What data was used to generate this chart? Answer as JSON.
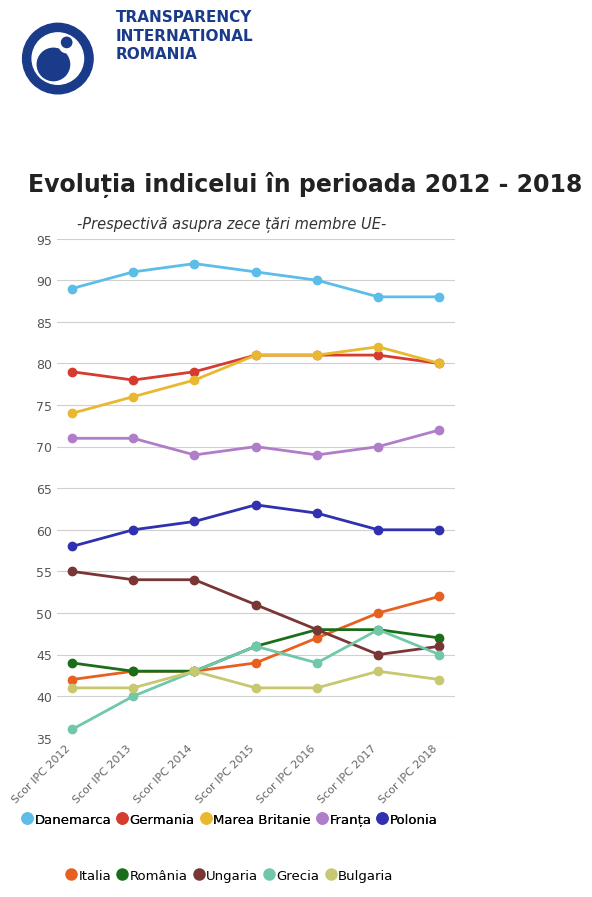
{
  "title": "Evoluția indicelui în perioada 2012 - 2018",
  "subtitle": "-Prespectivă asupra zece țări membre UE-",
  "x_labels": [
    "Scor IPC 2012",
    "Scor IPC 2013",
    "Scor IPC 2014",
    "Scor IPC 2015",
    "Scor IPC 2016",
    "Scor IPC 2017",
    "Scor IPC 2018"
  ],
  "ylim": [
    35,
    95
  ],
  "yticks": [
    35,
    40,
    45,
    50,
    55,
    60,
    65,
    70,
    75,
    80,
    85,
    90,
    95
  ],
  "series": [
    {
      "name": "Danemarca",
      "color": "#5bbde8",
      "values": [
        89,
        91,
        92,
        91,
        90,
        88,
        88
      ]
    },
    {
      "name": "Germania",
      "color": "#d63b2f",
      "values": [
        79,
        78,
        79,
        81,
        81,
        81,
        80
      ]
    },
    {
      "name": "Marea Britanie",
      "color": "#e8b830",
      "values": [
        74,
        76,
        78,
        81,
        81,
        82,
        80
      ]
    },
    {
      "name": "Franța",
      "color": "#b07ec8",
      "values": [
        71,
        71,
        69,
        70,
        69,
        70,
        72
      ]
    },
    {
      "name": "Polonia",
      "color": "#3030b0",
      "values": [
        58,
        60,
        61,
        63,
        62,
        60,
        60
      ]
    },
    {
      "name": "Italia",
      "color": "#e86020",
      "values": [
        42,
        43,
        43,
        44,
        47,
        50,
        52
      ]
    },
    {
      "name": "România",
      "color": "#1a6e1a",
      "values": [
        44,
        43,
        43,
        46,
        48,
        48,
        47
      ]
    },
    {
      "name": "Ungaria",
      "color": "#7a3535",
      "values": [
        55,
        54,
        54,
        51,
        48,
        45,
        46
      ]
    },
    {
      "name": "Grecia",
      "color": "#70c8a8",
      "values": [
        36,
        40,
        43,
        46,
        44,
        48,
        45
      ]
    },
    {
      "name": "Bulgaria",
      "color": "#c8c870",
      "values": [
        41,
        41,
        43,
        41,
        41,
        43,
        42
      ]
    }
  ],
  "background_color": "#ffffff",
  "grid_color": "#d0d0d0",
  "title_color": "#1a1a6e",
  "logo_color": "#1a3a8a",
  "title_fontsize": 17,
  "subtitle_fontsize": 10.5,
  "tick_fontsize": 9,
  "xlabel_fontsize": 8,
  "legend_fontsize": 9.5,
  "line_width": 2.0,
  "marker_size": 6,
  "logo_text": "TRANSPARENCY\nINTERNATIONAL\nROMANIA",
  "logo_text_fontsize": 11
}
